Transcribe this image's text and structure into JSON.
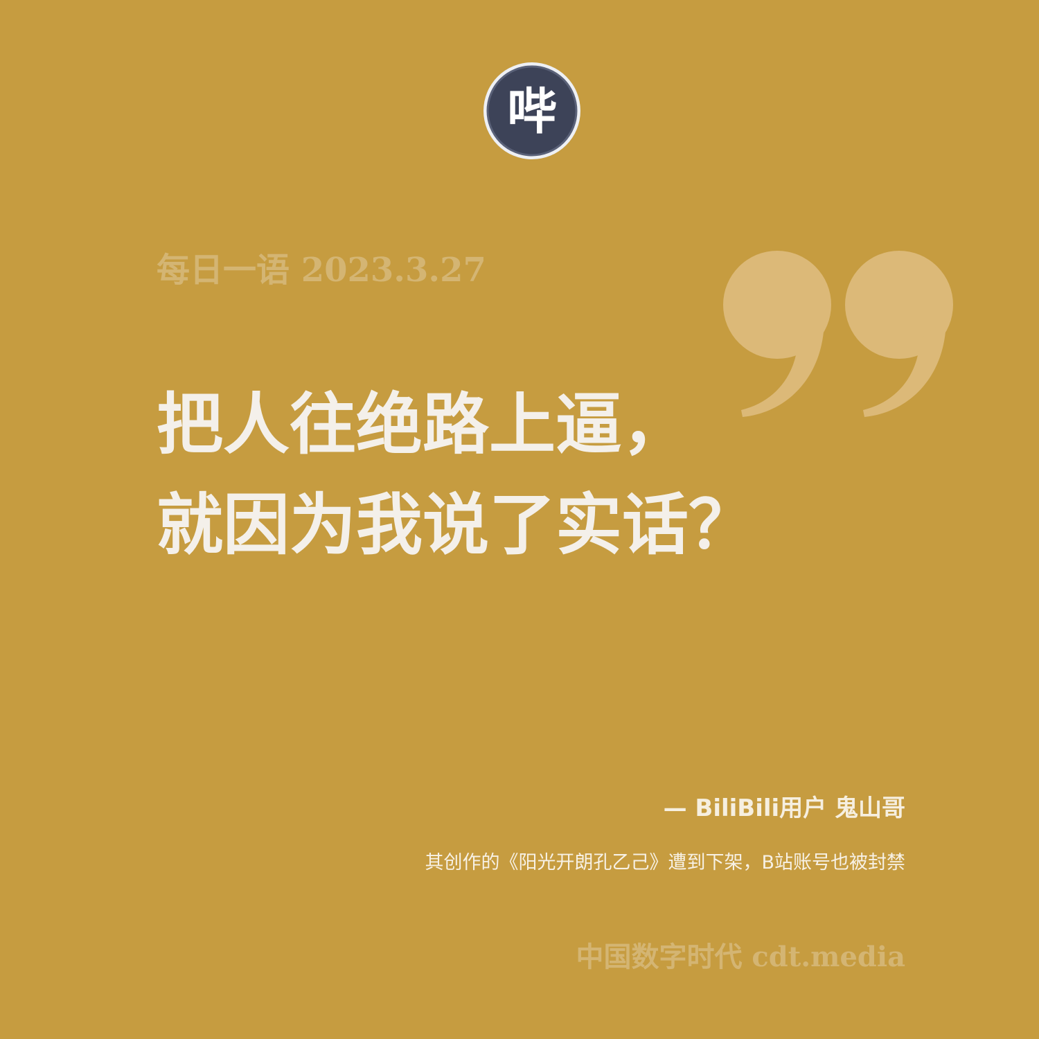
{
  "header": {
    "logo_icon": "cdt-seal-icon",
    "logo_glyph": "哔",
    "date_label": "每日一语 2023.3.27"
  },
  "quote": {
    "line1": "把人往绝路上逼，",
    "line2": "就因为我说了实话？",
    "mark_icon": "closing-quote-icon"
  },
  "attribution": {
    "text": "— BiliBili用户 鬼山哥"
  },
  "context": {
    "text": "其创作的《阳光开朗孔乙己》遭到下架，B站账号也被封禁"
  },
  "footer": {
    "brand": "中国数字时代 cdt.media"
  },
  "colors": {
    "background": "#c69c40",
    "muted_text": "#d4b573",
    "quote_mark": "#dcb978",
    "main_text": "#f4f0ea",
    "logo_fill": "#3d4358"
  }
}
